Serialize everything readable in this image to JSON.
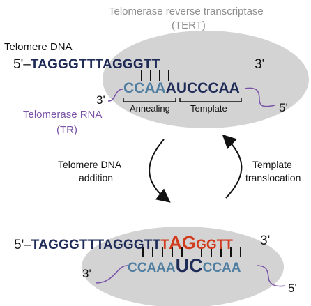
{
  "colors": {
    "dna": "#1e2b57",
    "rna_light": "#4f7ea1",
    "rna_dark": "#1e2b57",
    "added_nucleotides": "#d23a1c",
    "tert_ellipse": "#d3d3d3",
    "purple_labels": "#7a52a8",
    "gray_labels": "#8f8f8f"
  },
  "tert_label": {
    "line1": "Telomerase reverse transcriptase",
    "line2": "(TERT)"
  },
  "telomere_dna_label": "Telomere DNA",
  "tr_label": {
    "line1": "Telomerase RNA",
    "line2": "(TR)"
  },
  "top": {
    "dna_5prime": "5'–",
    "dna_seq": "TAGGGTTTAGGGTT",
    "dna_3prime": "3'",
    "rna_3prime": "3'",
    "rna_annealing": "CCAA",
    "rna_template": "AUCCCAA",
    "rna_5prime": "5'",
    "annealing_label": "Annealing",
    "template_label": "Template"
  },
  "step_left": {
    "line1": "Telomere DNA",
    "line2": "addition"
  },
  "step_right": {
    "line1": "Template",
    "line2": "translocation"
  },
  "bottom": {
    "dna_5prime": "5'–",
    "dna_seq_a": "TAGGGTTTAGGGTT",
    "dna_new_t": "T",
    "dna_new_ag": "AG",
    "dna_new_ggtt": "GGTT",
    "dna_3prime": "3'",
    "rna_3prime": "3'",
    "rna_part1": "CCAAA",
    "rna_part2": "UC",
    "rna_part3": "CCAA",
    "rna_5prime": "5'"
  }
}
